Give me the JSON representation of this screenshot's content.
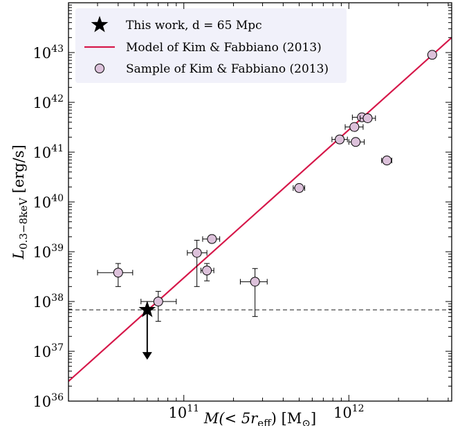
{
  "chart_data": {
    "type": "scatter",
    "xlabel": "M(< 5r_eff) [M_⊙]",
    "ylabel": "L_0.3−8keV [erg/s]",
    "xlabel_parts": {
      "main": "M(< 5r",
      "sub": "eff",
      "tail": ") [M",
      "sun": "⊙",
      "end": "]"
    },
    "ylabel_parts": {
      "main": "L",
      "sub": "0.3−8keV",
      "tail": " [erg/s]"
    },
    "xscale": "log",
    "yscale": "log",
    "xlim": [
      20000000000.0,
      4200000000000.0
    ],
    "ylim": [
      1e+36,
      1e+44
    ],
    "x_tick_labels": [
      {
        "base": "10",
        "exp": "11",
        "value": 100000000000.0
      },
      {
        "base": "10",
        "exp": "12",
        "value": 1000000000000.0
      }
    ],
    "y_tick_labels": [
      {
        "base": "10",
        "exp": "36",
        "value": 1e+36
      },
      {
        "base": "10",
        "exp": "37",
        "value": 1e+37
      },
      {
        "base": "10",
        "exp": "38",
        "value": 1e+38
      },
      {
        "base": "10",
        "exp": "39",
        "value": 1e+39
      },
      {
        "base": "10",
        "exp": "40",
        "value": 1e+40
      },
      {
        "base": "10",
        "exp": "41",
        "value": 1e+41
      },
      {
        "base": "10",
        "exp": "42",
        "value": 1e+42
      },
      {
        "base": "10",
        "exp": "43",
        "value": 1e+43
      }
    ],
    "legend_position": "top-left",
    "legend": [
      {
        "label": "This work, d = 65 Mpc",
        "marker": "star"
      },
      {
        "label": "Model of Kim & Fabbiano (2013)",
        "marker": "line"
      },
      {
        "label": "Sample of Kim & Fabbiano (2013)",
        "marker": "circle"
      }
    ],
    "model_line": {
      "x": [
        20000000000.0,
        4200000000000.0
      ],
      "y": [
        2.5e+36,
        2e+43
      ]
    },
    "detection_limit": 6.8e+37,
    "this_work": {
      "x": 60000000000.0,
      "y": 6.8e+37,
      "upper_limit": true,
      "arrow_to": 7e+36
    },
    "sample": [
      {
        "x": 40000000000.0,
        "y": 3.8e+38,
        "xerr": [
          30000000000.0,
          49000000000.0
        ],
        "yerr": [
          2e+38,
          5.8e+38
        ]
      },
      {
        "x": 70000000000.0,
        "y": 1e+38,
        "xerr": [
          55000000000.0,
          90000000000.0
        ],
        "yerr": [
          4e+37,
          1.6e+38
        ]
      },
      {
        "x": 120000000000.0,
        "y": 9.5e+38,
        "xerr": [
          105000000000.0,
          138000000000.0
        ],
        "yerr": [
          2e+38,
          1.7e+39
        ]
      },
      {
        "x": 138000000000.0,
        "y": 4.2e+38,
        "xerr": [
          127000000000.0,
          152000000000.0
        ],
        "yerr": [
          2.6e+38,
          5.8e+38
        ]
      },
      {
        "x": 148000000000.0,
        "y": 1.8e+39,
        "xerr": [
          130000000000.0,
          165000000000.0
        ],
        "yerr": null
      },
      {
        "x": 270000000000.0,
        "y": 2.5e+38,
        "xerr": [
          220000000000.0,
          320000000000.0
        ],
        "yerr": [
          5e+37,
          4.6e+38
        ]
      },
      {
        "x": 500000000000.0,
        "y": 1.9e+40,
        "xerr": [
          460000000000.0,
          540000000000.0
        ],
        "yerr": null
      },
      {
        "x": 880000000000.0,
        "y": 1.8e+41,
        "xerr": [
          790000000000.0,
          980000000000.0
        ],
        "yerr": null
      },
      {
        "x": 1080000000000.0,
        "y": 3.2e+41,
        "xerr": [
          950000000000.0,
          1220000000000.0
        ],
        "yerr": null
      },
      {
        "x": 1100000000000.0,
        "y": 1.6e+41,
        "xerr": [
          1000000000000.0,
          1240000000000.0
        ],
        "yerr": null
      },
      {
        "x": 1200000000000.0,
        "y": 5e+41,
        "xerr": [
          1050000000000.0,
          1350000000000.0
        ],
        "yerr": null
      },
      {
        "x": 1300000000000.0,
        "y": 4.8e+41,
        "xerr": [
          1170000000000.0,
          1450000000000.0
        ],
        "yerr": null
      },
      {
        "x": 1700000000000.0,
        "y": 6.8e+40,
        "xerr": [
          1580000000000.0,
          1820000000000.0
        ],
        "yerr": null
      },
      {
        "x": 3200000000000.0,
        "y": 9e+42,
        "xerr": [
          3050000000000.0,
          3350000000000.0
        ],
        "yerr": null
      }
    ],
    "colors": {
      "model": "#d6184a",
      "marker_fill": "#dcc1da",
      "star": "#000000",
      "limit_line": "#333333",
      "legend_bg": "#f1f1fa"
    }
  }
}
